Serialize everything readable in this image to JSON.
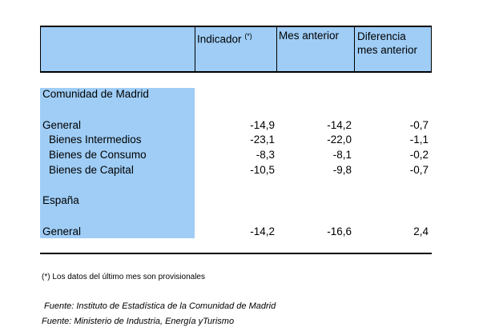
{
  "header": {
    "columns": [
      {
        "label": "Indicador",
        "note": "(*)"
      },
      {
        "label": "Mes anterior"
      },
      {
        "label": "Diferencia mes anterior"
      }
    ]
  },
  "sections": [
    {
      "title": "Comunidad de Madrid",
      "rows": [
        {
          "label": "General",
          "values": [
            "-14,9",
            "-14,2",
            "-0,7"
          ]
        },
        {
          "label": "Bienes Intermedios",
          "values": [
            "-23,1",
            "-22,0",
            "-1,1"
          ]
        },
        {
          "label": "Bienes de Consumo",
          "values": [
            "-8,3",
            "-8,1",
            "-0,2"
          ]
        },
        {
          "label": "Bienes de Capital",
          "values": [
            "-10,5",
            "-9,8",
            "-0,7"
          ]
        }
      ]
    },
    {
      "title": "España",
      "rows": [
        {
          "label": "General",
          "values": [
            "-14,2",
            "-16,6",
            "2,4"
          ]
        }
      ]
    }
  ],
  "footnote": "(*) Los datos del último mes son provisionales",
  "sources": [
    "Fuente: Instituto de Estadística de la Comunidad de Madrid",
    "Fuente: Ministerio de Industria, Energía yTurismo"
  ]
}
